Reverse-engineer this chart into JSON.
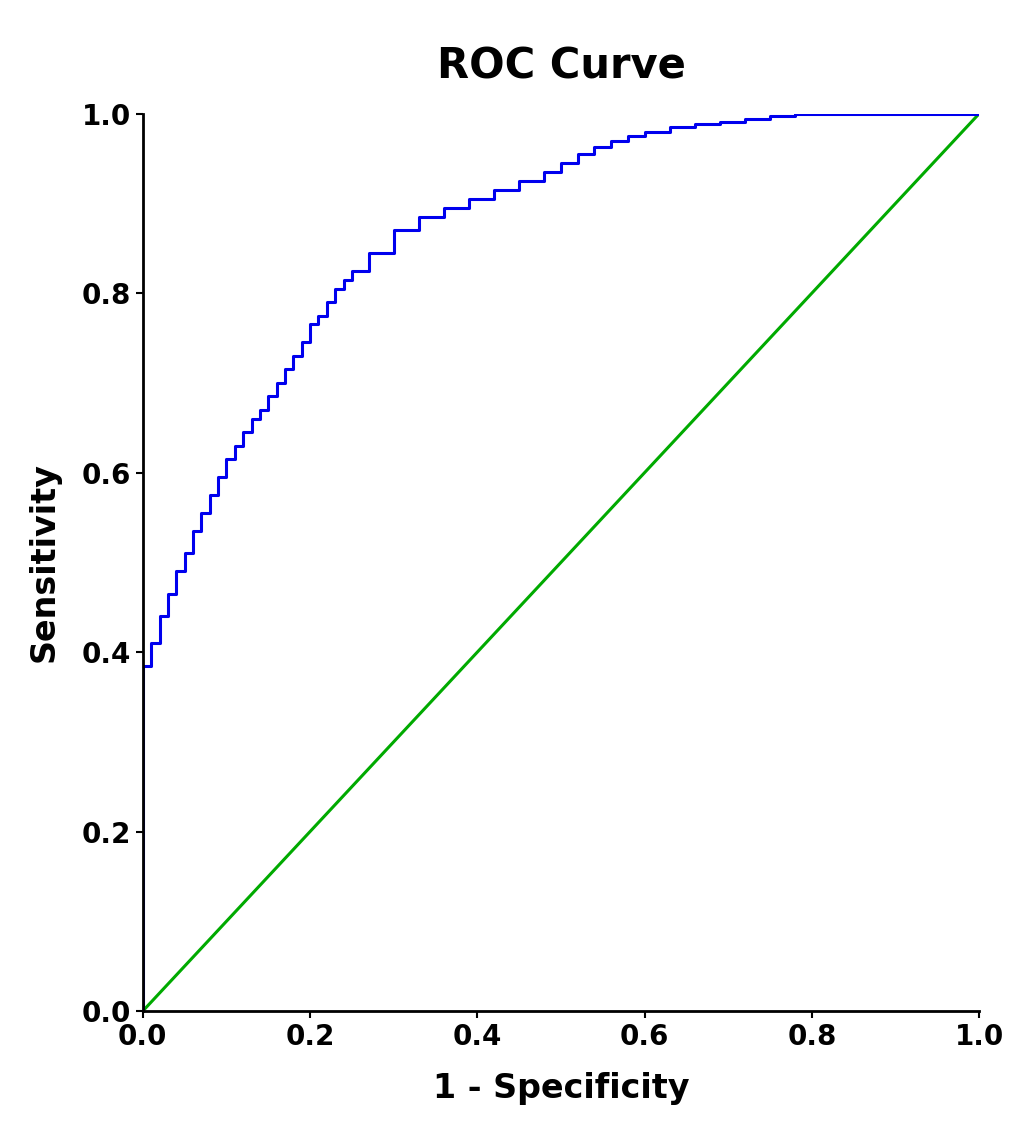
{
  "title": "ROC Curve",
  "xlabel": "1 - Specificity",
  "ylabel": "Sensitivity",
  "xlim": [
    0.0,
    1.0
  ],
  "ylim": [
    0.0,
    1.0
  ],
  "xticks": [
    0.0,
    0.2,
    0.4,
    0.6,
    0.8,
    1.0
  ],
  "yticks": [
    0.0,
    0.2,
    0.4,
    0.6,
    0.8,
    1.0
  ],
  "roc_color": "#0000EE",
  "diagonal_color": "#00AA00",
  "roc_linewidth": 2.2,
  "diagonal_linewidth": 2.2,
  "background_color": "#FFFFFF",
  "title_fontsize": 30,
  "label_fontsize": 24,
  "tick_fontsize": 20,
  "title_fontweight": "bold",
  "label_fontweight": "bold",
  "tick_fontweight": "bold",
  "fpr": [
    0.0,
    0.0,
    0.01,
    0.01,
    0.02,
    0.02,
    0.03,
    0.03,
    0.04,
    0.04,
    0.05,
    0.05,
    0.06,
    0.06,
    0.07,
    0.07,
    0.08,
    0.08,
    0.09,
    0.09,
    0.1,
    0.1,
    0.11,
    0.11,
    0.12,
    0.12,
    0.13,
    0.13,
    0.14,
    0.14,
    0.15,
    0.15,
    0.16,
    0.16,
    0.17,
    0.17,
    0.18,
    0.18,
    0.19,
    0.19,
    0.2,
    0.2,
    0.21,
    0.21,
    0.22,
    0.22,
    0.23,
    0.23,
    0.24,
    0.24,
    0.25,
    0.25,
    0.27,
    0.27,
    0.3,
    0.3,
    0.33,
    0.33,
    0.36,
    0.36,
    0.39,
    0.39,
    0.42,
    0.42,
    0.45,
    0.45,
    0.48,
    0.48,
    0.5,
    0.5,
    0.52,
    0.52,
    0.54,
    0.54,
    0.56,
    0.56,
    0.58,
    0.58,
    0.6,
    0.6,
    0.63,
    0.63,
    0.66,
    0.66,
    0.69,
    0.69,
    0.72,
    0.72,
    0.75,
    0.75,
    0.78,
    0.78,
    0.83,
    0.83,
    0.88,
    0.88,
    0.93,
    0.93,
    0.97,
    0.97,
    1.0
  ],
  "tpr": [
    0.0,
    0.385,
    0.385,
    0.41,
    0.41,
    0.44,
    0.44,
    0.465,
    0.465,
    0.49,
    0.49,
    0.51,
    0.51,
    0.535,
    0.535,
    0.555,
    0.555,
    0.575,
    0.575,
    0.595,
    0.595,
    0.615,
    0.615,
    0.63,
    0.63,
    0.645,
    0.645,
    0.66,
    0.66,
    0.67,
    0.67,
    0.685,
    0.685,
    0.7,
    0.7,
    0.715,
    0.715,
    0.73,
    0.73,
    0.745,
    0.745,
    0.765,
    0.765,
    0.775,
    0.775,
    0.79,
    0.79,
    0.805,
    0.805,
    0.815,
    0.815,
    0.825,
    0.825,
    0.845,
    0.845,
    0.87,
    0.87,
    0.885,
    0.885,
    0.895,
    0.895,
    0.905,
    0.905,
    0.915,
    0.915,
    0.925,
    0.925,
    0.935,
    0.935,
    0.945,
    0.945,
    0.955,
    0.955,
    0.963,
    0.963,
    0.97,
    0.97,
    0.975,
    0.975,
    0.98,
    0.98,
    0.985,
    0.985,
    0.988,
    0.988,
    0.991,
    0.991,
    0.994,
    0.994,
    0.997,
    0.997,
    0.999,
    0.999,
    1.0,
    1.0,
    1.0,
    1.0,
    1.0,
    1.0,
    1.0,
    1.0
  ]
}
